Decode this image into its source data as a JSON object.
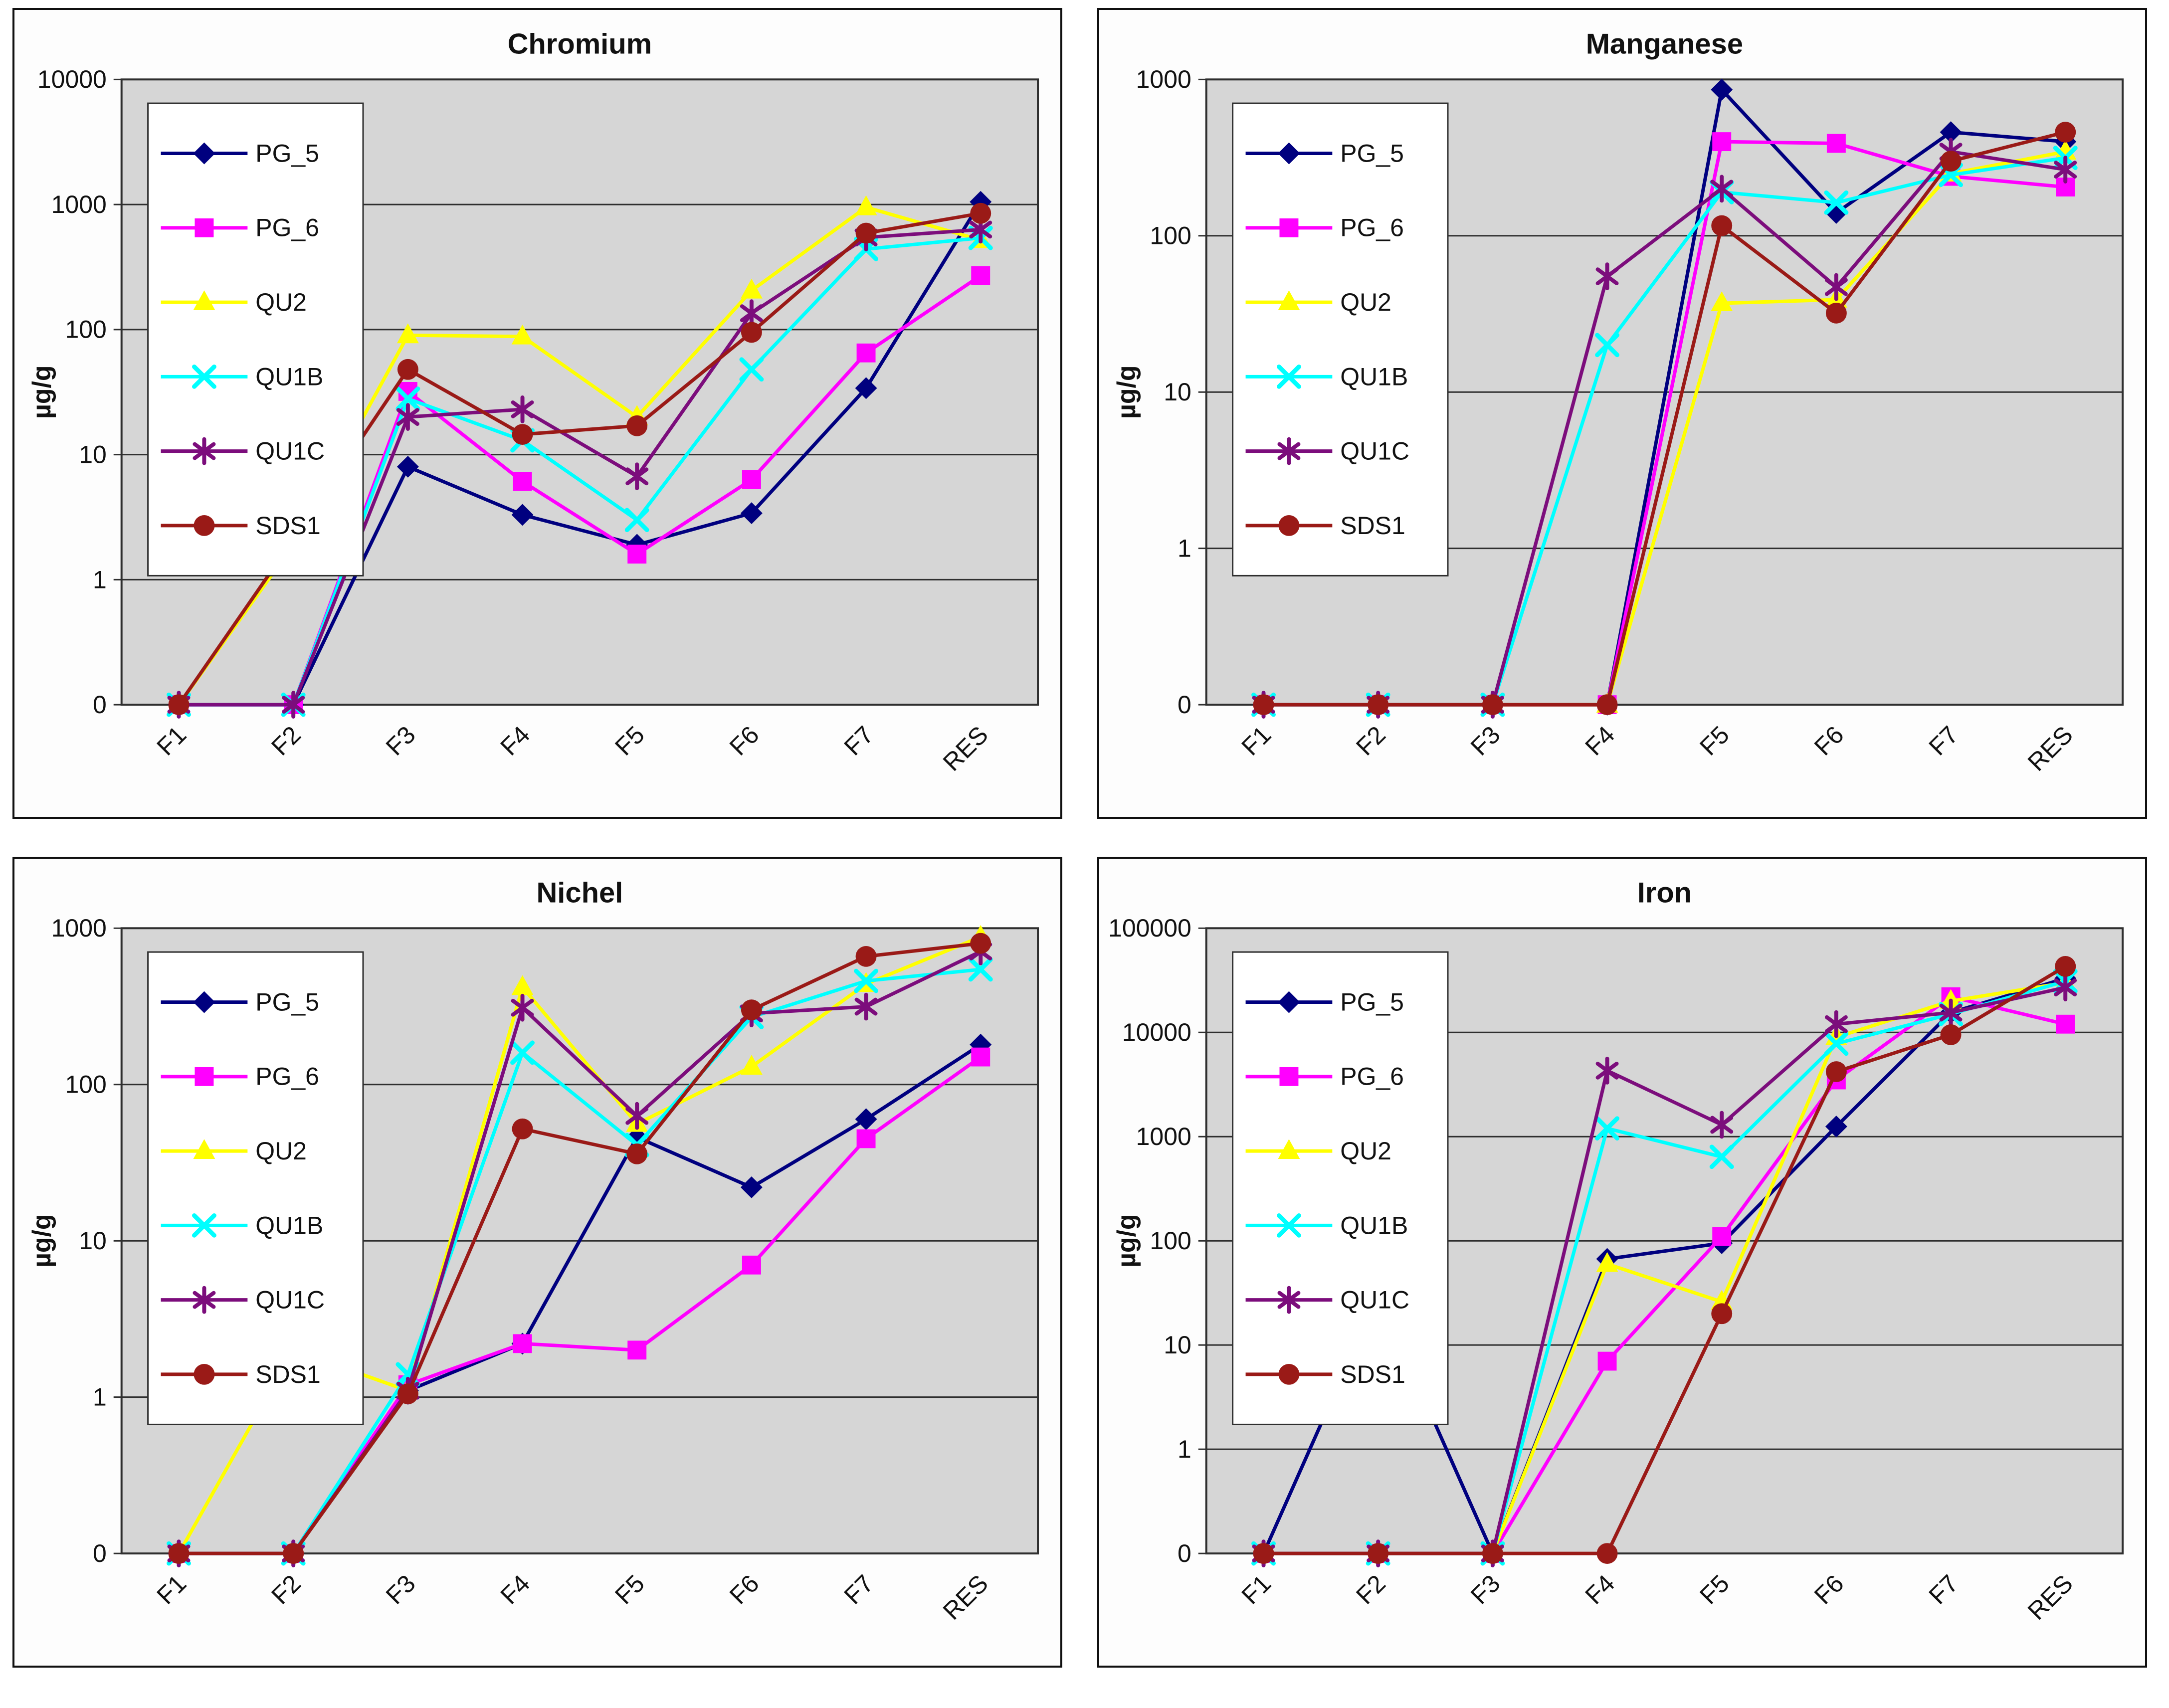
{
  "page": {
    "background": "#ffffff"
  },
  "styles": {
    "panel_background": "#fdfdfd",
    "plot_background": "#d6d6d6",
    "grid_color": "#2f2f2f",
    "legend_background": "#ffffff",
    "text_color": "#111111"
  },
  "series_meta": [
    {
      "name": "PG_5",
      "color": "#00007f",
      "marker": "diamond"
    },
    {
      "name": "PG_6",
      "color": "#ff00ff",
      "marker": "square"
    },
    {
      "name": "QU2",
      "color": "#ffff00",
      "marker": "triangle"
    },
    {
      "name": "QU1B",
      "color": "#00ffff",
      "marker": "x"
    },
    {
      "name": "QU1C",
      "color": "#7c0d7c",
      "marker": "star"
    },
    {
      "name": "SDS1",
      "color": "#9a1a17",
      "marker": "circle"
    }
  ],
  "chart_data": [
    {
      "type": "line",
      "title": "Chromium",
      "ylabel": "µg/g",
      "y_scale": "log (0 floor, one decade per gridline)",
      "y_ticks": [
        "10000",
        "1000",
        "100",
        "10",
        "1",
        "0"
      ],
      "ylim": [
        0,
        10000
      ],
      "grid": true,
      "legend_position": "upper-left",
      "categories": [
        "F1",
        "F2",
        "F3",
        "F4",
        "F5",
        "F6",
        "F7",
        "RES"
      ],
      "series": [
        {
          "name": "PG_5",
          "values": [
            0,
            0,
            8,
            3.3,
            1.9,
            3.4,
            34,
            1050
          ]
        },
        {
          "name": "PG_6",
          "values": [
            0,
            0,
            32,
            6.1,
            1.6,
            6.3,
            65,
            270
          ]
        },
        {
          "name": "QU2",
          "values": [
            0,
            1.9,
            90,
            88,
            20,
            205,
            950,
            520
          ]
        },
        {
          "name": "QU1B",
          "values": [
            0,
            0,
            28,
            13,
            3,
            48,
            440,
            540
          ]
        },
        {
          "name": "QU1C",
          "values": [
            0,
            0,
            20,
            23,
            6.7,
            135,
            545,
            630
          ]
        },
        {
          "name": "SDS1",
          "values": [
            0,
            2.1,
            48,
            14.5,
            17,
            95,
            590,
            850
          ]
        }
      ]
    },
    {
      "type": "line",
      "title": "Manganese",
      "ylabel": "µg/g",
      "y_scale": "log (0 floor, one decade per gridline)",
      "y_ticks": [
        "1000",
        "100",
        "10",
        "1",
        "0"
      ],
      "ylim": [
        0,
        1000
      ],
      "grid": true,
      "legend_position": "upper-left",
      "categories": [
        "F1",
        "F2",
        "F3",
        "F4",
        "F5",
        "F6",
        "F7",
        "RES"
      ],
      "series": [
        {
          "name": "PG_5",
          "values": [
            0,
            0,
            0,
            0,
            860,
            140,
            460,
            400
          ]
        },
        {
          "name": "PG_6",
          "values": [
            0,
            0,
            0,
            0,
            400,
            390,
            240,
            205
          ]
        },
        {
          "name": "QU2",
          "values": [
            0,
            0,
            0,
            0,
            37,
            39,
            250,
            345
          ]
        },
        {
          "name": "QU1B",
          "values": [
            0,
            0,
            0,
            20,
            190,
            163,
            245,
            315
          ]
        },
        {
          "name": "QU1C",
          "values": [
            0,
            0,
            0,
            55,
            200,
            47,
            345,
            265
          ]
        },
        {
          "name": "SDS1",
          "values": [
            0,
            0,
            0,
            0,
            116,
            32,
            300,
            460
          ]
        }
      ]
    },
    {
      "type": "line",
      "title": "Nichel",
      "ylabel": "µg/g",
      "y_scale": "log (0 floor, one decade per gridline)",
      "y_ticks": [
        "1000",
        "100",
        "10",
        "1",
        "0"
      ],
      "ylim": [
        0,
        1000
      ],
      "grid": true,
      "legend_position": "upper-left",
      "categories": [
        "F1",
        "F2",
        "F3",
        "F4",
        "F5",
        "F6",
        "F7",
        "RES"
      ],
      "series": [
        {
          "name": "PG_5",
          "values": [
            0,
            0,
            1.1,
            2.2,
            46,
            22,
            60,
            180
          ]
        },
        {
          "name": "PG_6",
          "values": [
            0,
            0,
            1.2,
            2.2,
            2,
            7,
            45,
            150
          ]
        },
        {
          "name": "QU2",
          "values": [
            0,
            2,
            1.1,
            420,
            56,
            130,
            440,
            880
          ]
        },
        {
          "name": "QU1B",
          "values": [
            0,
            0,
            1.4,
            160,
            41,
            270,
            460,
            545
          ]
        },
        {
          "name": "QU1C",
          "values": [
            0,
            0,
            1.1,
            310,
            63,
            285,
            315,
            710
          ]
        },
        {
          "name": "SDS1",
          "values": [
            0,
            0,
            1.05,
            52,
            36,
            300,
            660,
            800
          ]
        }
      ]
    },
    {
      "type": "line",
      "title": "Iron",
      "ylabel": "µg/g",
      "y_scale": "log (0 floor, one decade per gridline)",
      "y_ticks": [
        "100000",
        "10000",
        "1000",
        "100",
        "10",
        "1",
        "0"
      ],
      "ylim": [
        0,
        100000
      ],
      "grid": true,
      "legend_position": "upper-left",
      "categories": [
        "F1",
        "F2",
        "F3",
        "F4",
        "F5",
        "F6",
        "F7",
        "RES"
      ],
      "series": [
        {
          "name": "PG_5",
          "values": [
            0,
            30,
            0,
            67,
            95,
            1250,
            15500,
            33000
          ]
        },
        {
          "name": "PG_6",
          "values": [
            0,
            0,
            0,
            7,
            110,
            3500,
            22000,
            12000
          ]
        },
        {
          "name": "QU2",
          "values": [
            0,
            0,
            0,
            60,
            26,
            9000,
            20000,
            30000
          ]
        },
        {
          "name": "QU1B",
          "values": [
            0,
            0,
            0,
            1200,
            640,
            7800,
            15000,
            31000
          ]
        },
        {
          "name": "QU1C",
          "values": [
            0,
            0,
            0,
            4300,
            1300,
            12000,
            15500,
            27000
          ]
        },
        {
          "name": "SDS1",
          "values": [
            0,
            0,
            0,
            0,
            20,
            4200,
            9500,
            43000
          ]
        }
      ]
    }
  ]
}
